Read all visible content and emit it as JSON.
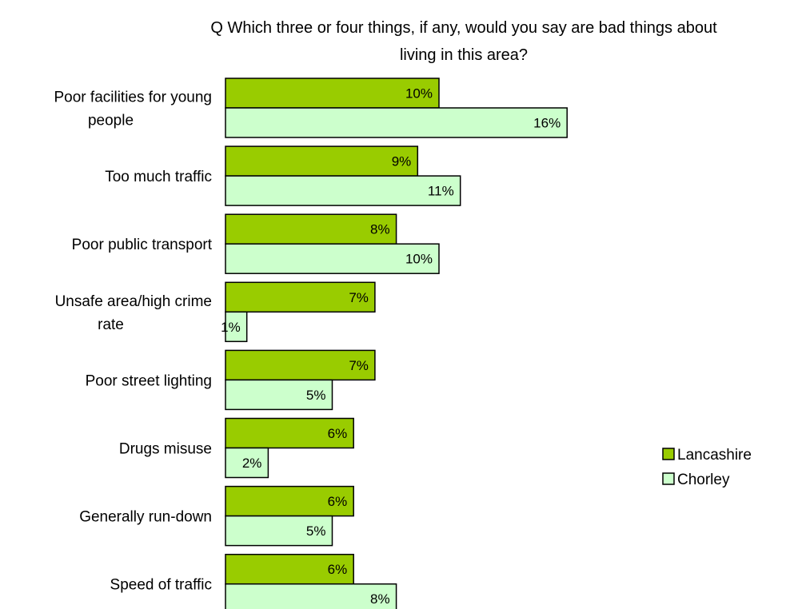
{
  "chart_data": {
    "type": "bar",
    "orientation": "horizontal",
    "title_lines": [
      "Q Which three or four things, if any, would you say are bad things about",
      "living in this area?"
    ],
    "categories": [
      [
        "Poor facilities for young",
        "people"
      ],
      [
        "Too much traffic"
      ],
      [
        "Poor public transport"
      ],
      [
        "Unsafe area/high crime",
        "rate"
      ],
      [
        "Poor street lighting"
      ],
      [
        "Drugs misuse"
      ],
      [
        "Generally run-down"
      ],
      [
        "Speed of traffic"
      ]
    ],
    "series": [
      {
        "name": "Lancashire",
        "color": "#99cc00",
        "values": [
          10,
          9,
          8,
          7,
          7,
          6,
          6,
          6
        ],
        "labels": [
          "10%",
          "9%",
          "8%",
          "7%",
          "7%",
          "6%",
          "6%",
          "6%"
        ]
      },
      {
        "name": "Chorley",
        "color": "#ccffcc",
        "values": [
          16,
          11,
          10,
          1,
          5,
          2,
          5,
          8
        ],
        "labels": [
          "16%",
          "11%",
          "10%",
          "1%",
          "5%",
          "2%",
          "5%",
          "8%"
        ]
      }
    ],
    "value_unit": "%",
    "grid": false,
    "legend_position": "right"
  }
}
